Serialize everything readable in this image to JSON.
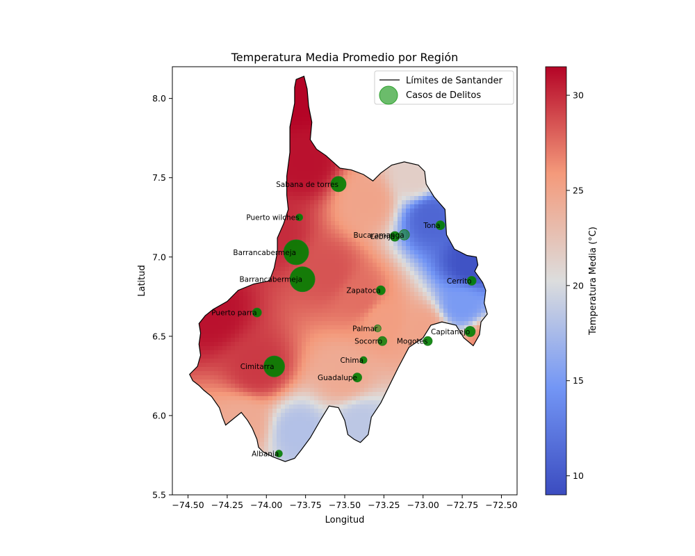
{
  "chart_data": {
    "type": "map",
    "title": "Temperatura Media Promedio por Región",
    "xlabel": "Longitud",
    "ylabel": "Latitud",
    "xlim": [
      -74.6,
      -72.4
    ],
    "ylim": [
      5.5,
      8.2
    ],
    "xticks": [
      -74.5,
      -74.25,
      -74.0,
      -73.75,
      -73.5,
      -73.25,
      -73.0,
      -72.75,
      -72.5
    ],
    "xtick_labels": [
      "−74.50",
      "−74.25",
      "−74.00",
      "−73.75",
      "−73.50",
      "−73.25",
      "−73.00",
      "−72.75",
      "−72.50"
    ],
    "yticks": [
      5.5,
      6.0,
      6.5,
      7.0,
      7.5,
      8.0
    ],
    "ytick_labels": [
      "5.5",
      "6.0",
      "6.5",
      "7.0",
      "7.5",
      "8.0"
    ],
    "colorbar": {
      "label": "Temperatura Media (°C)",
      "range": [
        9.0,
        31.5
      ],
      "ticks": [
        10,
        15,
        20,
        25,
        30
      ],
      "tick_labels": [
        "10",
        "15",
        "20",
        "25",
        "30"
      ],
      "colormap": "coolwarm",
      "color_low": "#3b4cc0",
      "color_mid": "#dddddd",
      "color_high": "#b40426"
    },
    "legend": {
      "placement": "upper-right",
      "entries": [
        {
          "label": "Límites de Santander",
          "kind": "line",
          "color": "#000000"
        },
        {
          "label": "Casos de Delitos",
          "kind": "marker",
          "color": "#2ca02c"
        }
      ]
    },
    "temperature_field": [
      {
        "lon": -73.8,
        "lat": 8.0,
        "temp": 31.5
      },
      {
        "lon": -73.75,
        "lat": 7.6,
        "temp": 31.0
      },
      {
        "lon": -73.95,
        "lat": 7.15,
        "temp": 30.0
      },
      {
        "lon": -74.35,
        "lat": 6.65,
        "temp": 31.0
      },
      {
        "lon": -74.05,
        "lat": 6.3,
        "temp": 29.5
      },
      {
        "lon": -73.6,
        "lat": 6.9,
        "temp": 28.5
      },
      {
        "lon": -73.35,
        "lat": 7.35,
        "temp": 25.0
      },
      {
        "lon": -73.05,
        "lat": 7.5,
        "temp": 21.5
      },
      {
        "lon": -72.95,
        "lat": 7.25,
        "temp": 11.0
      },
      {
        "lon": -72.7,
        "lat": 6.95,
        "temp": 9.5
      },
      {
        "lon": -72.75,
        "lat": 6.7,
        "temp": 15.0
      },
      {
        "lon": -72.6,
        "lat": 6.45,
        "temp": 26.5
      },
      {
        "lon": -73.0,
        "lat": 6.55,
        "temp": 25.0
      },
      {
        "lon": -73.25,
        "lat": 6.6,
        "temp": 25.5
      },
      {
        "lon": -73.5,
        "lat": 6.25,
        "temp": 24.5
      },
      {
        "lon": -73.4,
        "lat": 5.95,
        "temp": 18.5
      },
      {
        "lon": -73.8,
        "lat": 5.9,
        "temp": 18.0
      },
      {
        "lon": -74.15,
        "lat": 5.95,
        "temp": 24.5
      },
      {
        "lon": -73.4,
        "lat": 6.75,
        "temp": 27.5
      }
    ],
    "crime_points": [
      {
        "label": "Sabana de torres",
        "lon": -73.54,
        "lat": 7.46,
        "size": 22,
        "alpha": 1.0
      },
      {
        "label": "Puerto wilches",
        "lon": -73.79,
        "lat": 7.25,
        "size": 10,
        "alpha": 1.0
      },
      {
        "label": "Bucaramanga",
        "lon": -73.12,
        "lat": 7.14,
        "size": 15,
        "alpha": 0.6
      },
      {
        "label": "Lebrija",
        "lon": -73.18,
        "lat": 7.13,
        "size": 14,
        "alpha": 1.0
      },
      {
        "label": "Tona",
        "lon": -72.89,
        "lat": 7.2,
        "size": 13,
        "alpha": 1.0
      },
      {
        "label": "Barrancabermeja",
        "lon": -73.81,
        "lat": 7.03,
        "size": 36,
        "alpha": 1.0
      },
      {
        "label": "Barrancabermeja",
        "lon": -73.77,
        "lat": 6.86,
        "size": 36,
        "alpha": 1.0
      },
      {
        "label": "Zapatoca",
        "lon": -73.27,
        "lat": 6.79,
        "size": 13,
        "alpha": 1.0
      },
      {
        "label": "Cerrito",
        "lon": -72.69,
        "lat": 6.85,
        "size": 13,
        "alpha": 1.0
      },
      {
        "label": "Puerto parra",
        "lon": -74.06,
        "lat": 6.65,
        "size": 13,
        "alpha": 1.0
      },
      {
        "label": "Palmar",
        "lon": -73.29,
        "lat": 6.55,
        "size": 10,
        "alpha": 0.6
      },
      {
        "label": "Socorro",
        "lon": -73.26,
        "lat": 6.47,
        "size": 13,
        "alpha": 0.9
      },
      {
        "label": "Mogotes",
        "lon": -72.97,
        "lat": 6.47,
        "size": 13,
        "alpha": 1.0
      },
      {
        "label": "Capitanejo",
        "lon": -72.7,
        "lat": 6.53,
        "size": 15,
        "alpha": 1.0
      },
      {
        "label": "Chima",
        "lon": -73.38,
        "lat": 6.35,
        "size": 10,
        "alpha": 1.0
      },
      {
        "label": "Cimitarra",
        "lon": -73.95,
        "lat": 6.31,
        "size": 30,
        "alpha": 1.0
      },
      {
        "label": "Guadalupe",
        "lon": -73.42,
        "lat": 6.24,
        "size": 13,
        "alpha": 1.0
      },
      {
        "label": "Albania",
        "lon": -73.92,
        "lat": 5.76,
        "size": 10,
        "alpha": 1.0
      }
    ],
    "boundary": [
      [
        -73.81,
        8.12
      ],
      [
        -73.76,
        8.14
      ],
      [
        -73.74,
        8.06
      ],
      [
        -73.73,
        7.95
      ],
      [
        -73.71,
        7.85
      ],
      [
        -73.72,
        7.74
      ],
      [
        -73.68,
        7.68
      ],
      [
        -73.62,
        7.64
      ],
      [
        -73.53,
        7.56
      ],
      [
        -73.46,
        7.55
      ],
      [
        -73.38,
        7.52
      ],
      [
        -73.32,
        7.48
      ],
      [
        -73.27,
        7.53
      ],
      [
        -73.2,
        7.58
      ],
      [
        -73.12,
        7.6
      ],
      [
        -73.03,
        7.58
      ],
      [
        -72.99,
        7.54
      ],
      [
        -72.98,
        7.46
      ],
      [
        -72.93,
        7.38
      ],
      [
        -72.86,
        7.3
      ],
      [
        -72.85,
        7.14
      ],
      [
        -72.8,
        7.05
      ],
      [
        -72.72,
        7.01
      ],
      [
        -72.66,
        7.0
      ],
      [
        -72.65,
        6.95
      ],
      [
        -72.67,
        6.91
      ],
      [
        -72.62,
        6.84
      ],
      [
        -72.6,
        6.79
      ],
      [
        -72.61,
        6.71
      ],
      [
        -72.59,
        6.64
      ],
      [
        -72.63,
        6.59
      ],
      [
        -72.64,
        6.51
      ],
      [
        -72.68,
        6.44
      ],
      [
        -72.74,
        6.49
      ],
      [
        -72.79,
        6.57
      ],
      [
        -72.88,
        6.59
      ],
      [
        -72.95,
        6.57
      ],
      [
        -73.0,
        6.49
      ],
      [
        -73.09,
        6.43
      ],
      [
        -73.16,
        6.3
      ],
      [
        -73.21,
        6.2
      ],
      [
        -73.27,
        6.08
      ],
      [
        -73.33,
        5.99
      ],
      [
        -73.35,
        5.88
      ],
      [
        -73.4,
        5.83
      ],
      [
        -73.44,
        5.85
      ],
      [
        -73.48,
        5.88
      ],
      [
        -73.5,
        5.97
      ],
      [
        -73.54,
        6.05
      ],
      [
        -73.6,
        6.06
      ],
      [
        -73.65,
        5.98
      ],
      [
        -73.72,
        5.86
      ],
      [
        -73.78,
        5.78
      ],
      [
        -73.82,
        5.73
      ],
      [
        -73.88,
        5.71
      ],
      [
        -73.96,
        5.74
      ],
      [
        -74.02,
        5.77
      ],
      [
        -74.05,
        5.8
      ],
      [
        -74.06,
        5.85
      ],
      [
        -74.09,
        5.92
      ],
      [
        -74.12,
        5.97
      ],
      [
        -74.16,
        6.02
      ],
      [
        -74.21,
        5.98
      ],
      [
        -74.26,
        5.94
      ],
      [
        -74.28,
        5.99
      ],
      [
        -74.3,
        6.05
      ],
      [
        -74.35,
        6.12
      ],
      [
        -74.4,
        6.16
      ],
      [
        -74.43,
        6.19
      ],
      [
        -74.47,
        6.22
      ],
      [
        -74.49,
        6.26
      ],
      [
        -74.44,
        6.31
      ],
      [
        -74.42,
        6.38
      ],
      [
        -74.43,
        6.45
      ],
      [
        -74.42,
        6.52
      ],
      [
        -74.43,
        6.58
      ],
      [
        -74.39,
        6.63
      ],
      [
        -74.34,
        6.67
      ],
      [
        -74.25,
        6.72
      ],
      [
        -74.18,
        6.79
      ],
      [
        -74.08,
        6.83
      ],
      [
        -73.98,
        6.85
      ],
      [
        -73.95,
        6.93
      ],
      [
        -73.93,
        7.03
      ],
      [
        -73.93,
        7.12
      ],
      [
        -73.89,
        7.21
      ],
      [
        -73.86,
        7.3
      ],
      [
        -73.87,
        7.39
      ],
      [
        -73.87,
        7.51
      ],
      [
        -73.85,
        7.66
      ],
      [
        -73.85,
        7.82
      ],
      [
        -73.82,
        7.97
      ],
      [
        -73.82,
        8.07
      ],
      [
        -73.81,
        8.12
      ]
    ]
  }
}
